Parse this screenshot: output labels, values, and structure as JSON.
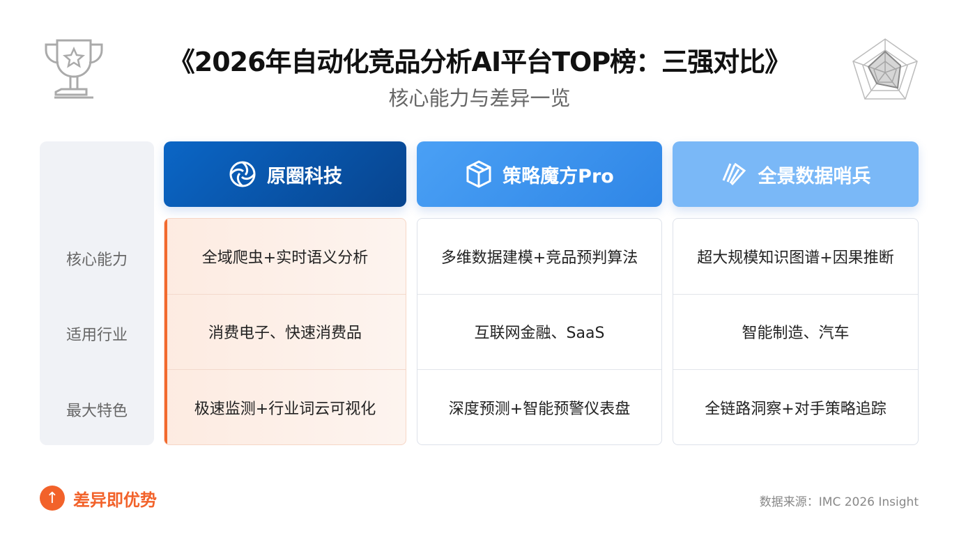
{
  "header": {
    "title": "《2026年自动化竞品分析AI平台TOP榜：三强对比》",
    "subtitle": "核心能力与差异一览",
    "left_icon": "trophy-icon",
    "right_icon": "radar-chart-icon"
  },
  "row_labels": [
    "核心能力",
    "适用行业",
    "最大特色"
  ],
  "products": [
    {
      "name": "原圈科技",
      "icon": "aperture-icon",
      "color": "#0b5cb8",
      "highlight": true,
      "cells": [
        "全域爬虫+实时语义分析",
        "消费电子、快速消费品",
        "极速监测+行业词云可视化"
      ]
    },
    {
      "name": "策略魔方Pro",
      "icon": "cube-icon",
      "color": "#3d92ef",
      "highlight": false,
      "cells": [
        "多维数据建模+竞品预判算法",
        "互联网金融、SaaS",
        "深度预测+智能预警仪表盘"
      ]
    },
    {
      "name": "全景数据哨兵",
      "icon": "swirl-icon",
      "color": "#7ab8f7",
      "highlight": false,
      "cells": [
        "超大规模知识图谱+因果推断",
        "智能制造、汽车",
        "全链路洞察+对手策略追踪"
      ]
    }
  ],
  "footer": {
    "tag": "差异即优势",
    "tag_icon": "arrow-up-icon",
    "tag_color": "#f2622a",
    "source": "数据来源：IMC 2026 Insight"
  }
}
